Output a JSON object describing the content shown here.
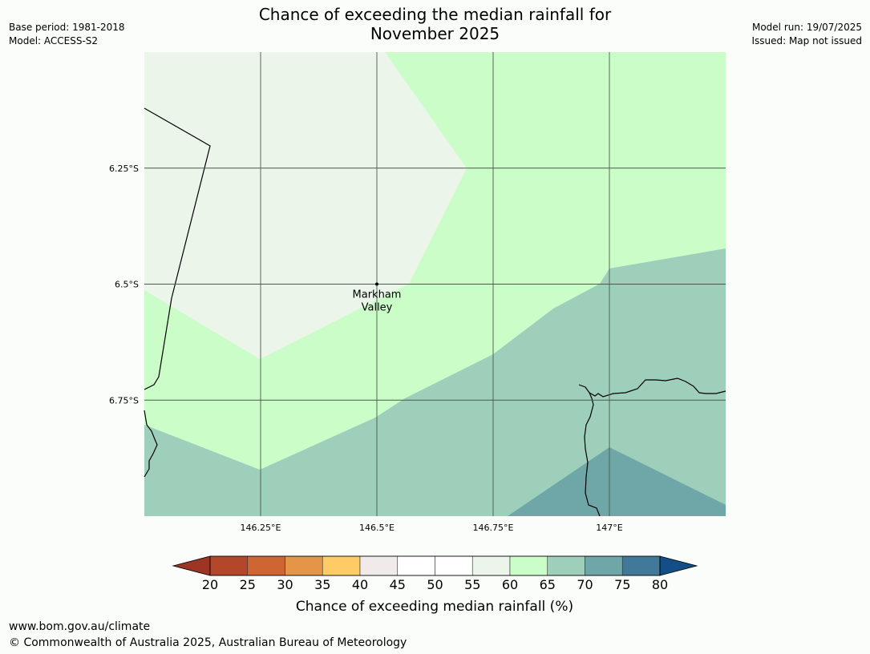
{
  "title_line1": "Chance of exceeding the median rainfall for",
  "title_line2": "November 2025",
  "meta": {
    "base_period": "Base period: 1981-2018",
    "model": "Model: ACCESS-S2",
    "model_run": "Model run: 19/07/2025",
    "issued": "Issued: Map not issued"
  },
  "map": {
    "lon_range": [
      146.0,
      147.25
    ],
    "lat_range": [
      -6.0,
      -7.0
    ],
    "x_ticks": [
      {
        "value": 146.25,
        "label": "146.25°E"
      },
      {
        "value": 146.5,
        "label": "146.5°E"
      },
      {
        "value": 146.75,
        "label": "146.75°E"
      },
      {
        "value": 147.0,
        "label": "147°E"
      }
    ],
    "y_ticks": [
      {
        "value": -6.25,
        "label": "6.25°S"
      },
      {
        "value": -6.5,
        "label": "6.5°S"
      },
      {
        "value": -6.75,
        "label": "6.75°S"
      }
    ],
    "place": {
      "name_line1": "Markham",
      "name_line2": "Valley",
      "lon": 146.5,
      "lat": -6.5
    }
  },
  "colorbar": {
    "label": "Chance of exceeding median rainfall (%)",
    "ticks": [
      "20",
      "25",
      "30",
      "35",
      "40",
      "45",
      "50",
      "55",
      "60",
      "65",
      "70",
      "75",
      "80"
    ],
    "colors": [
      "#9c3623",
      "#b4472a",
      "#d06534",
      "#e49548",
      "#fecb64",
      "#f0ebea",
      "#ffffff",
      "#ffffff",
      "#ebf5ea",
      "#cbfdc9",
      "#9dcfba",
      "#6fa6a7",
      "#41799a",
      "#154e86"
    ]
  },
  "zone_colors": {
    "z55_60": "#ebf5ea",
    "z60_65": "#cbfdc9",
    "z65_70": "#9dcfba",
    "z70_75": "#6fa6a7"
  },
  "footer": {
    "url": "www.bom.gov.au/climate",
    "copyright": "© Commonwealth of Australia 2025, Australian Bureau of Meteorology"
  }
}
